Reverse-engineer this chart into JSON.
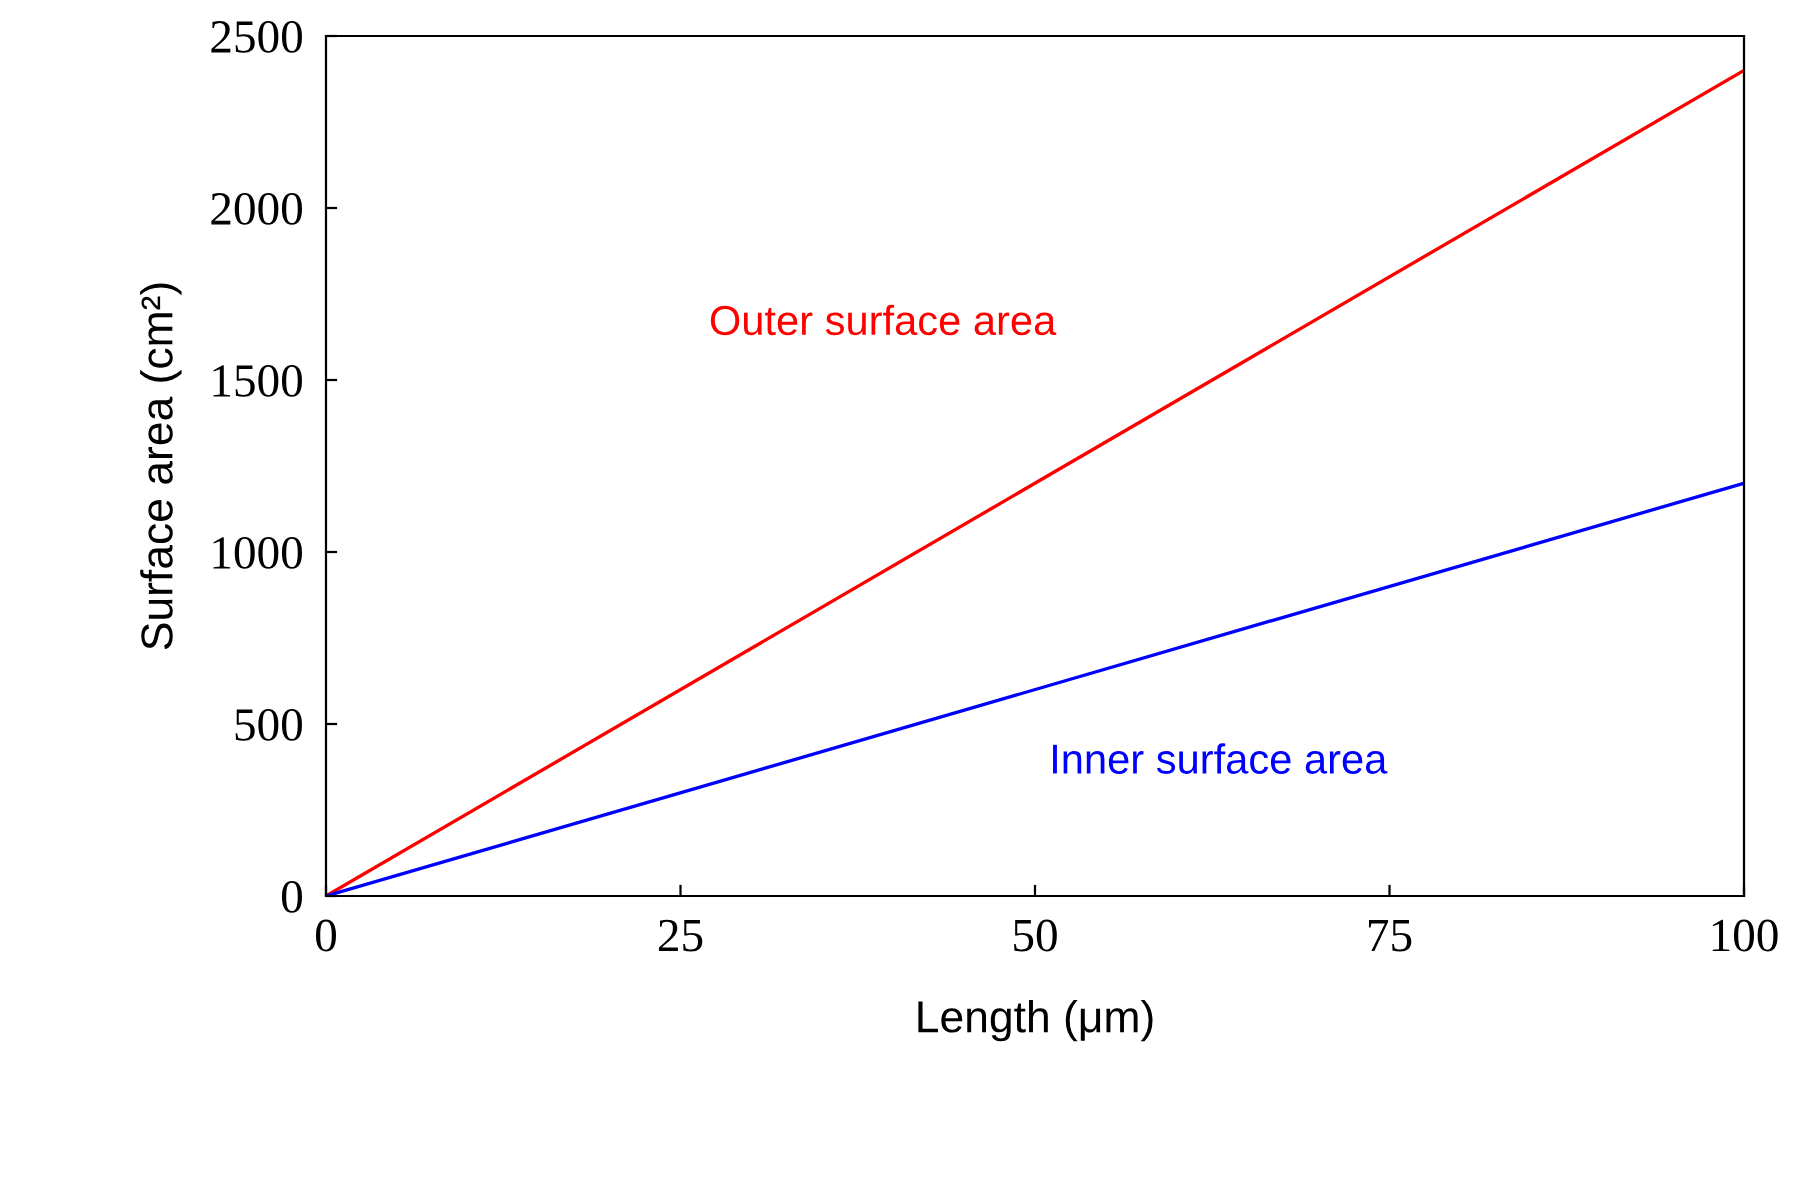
{
  "chart_data": {
    "type": "line",
    "xlabel": "Length (μm)",
    "ylabel": "Surface area (cm²)",
    "x": [
      0,
      100
    ],
    "series": [
      {
        "name": "Outer surface area",
        "color": "#ff0000",
        "values": [
          0,
          2400
        ]
      },
      {
        "name": "Inner surface area",
        "color": "#0000ff",
        "values": [
          0,
          1200
        ]
      }
    ],
    "xlim": [
      0,
      100
    ],
    "xticks": [
      0,
      25,
      50,
      75,
      100
    ],
    "ylim": [
      0,
      2500
    ],
    "yticks": [
      0,
      500,
      1000,
      1500,
      2000,
      2500
    ],
    "grid": false,
    "legend": false,
    "marker": "none",
    "line_style": "solid"
  }
}
